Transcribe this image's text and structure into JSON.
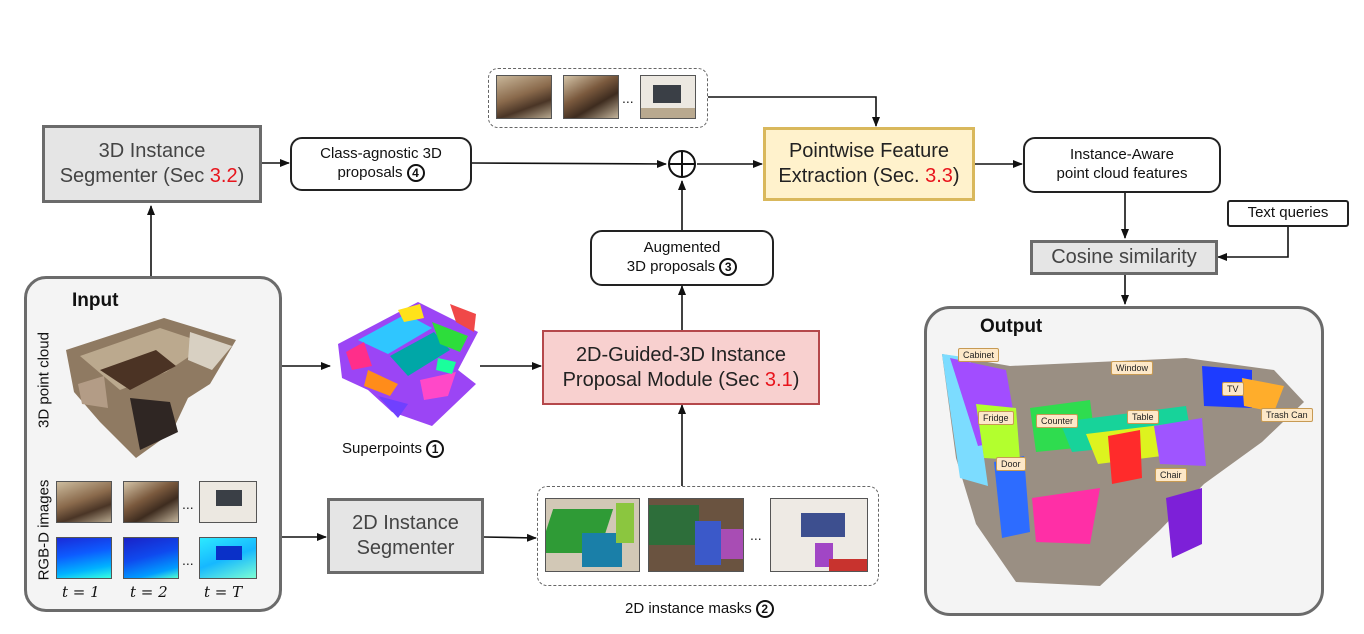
{
  "boxes": {
    "seg3d_line1": "3D Instance",
    "seg3d_line2": "Segmenter (Sec ",
    "seg3d_ref": "3.2",
    "seg3d_close": ")",
    "class_agnostic_line1": "Class-agnostic 3D",
    "class_agnostic_line2": "proposals",
    "class_agnostic_num": "4",
    "pointwise_line1": "Pointwise Feature",
    "pointwise_line2": "Extraction (Sec. ",
    "pointwise_ref": "3.3",
    "pointwise_close": ")",
    "instance_aware_line1": "Instance-Aware",
    "instance_aware_line2": "point cloud features",
    "text_queries": "Text queries",
    "cosine": "Cosine similarity",
    "augmented_line1": "Augmented",
    "augmented_line2": "3D proposals",
    "augmented_num": "3",
    "guided_line1": "2D-Guided-3D Instance",
    "guided_line2": "Proposal Module (Sec ",
    "guided_ref": "3.1",
    "guided_close": ")",
    "seg2d_line1": "2D Instance",
    "seg2d_line2": "Segmenter",
    "oplus": "⊕"
  },
  "input": {
    "title": "Input",
    "side_point_cloud": "3D point cloud",
    "side_rgbd": "RGB-D images",
    "t_labels": [
      "t = 1",
      "t = 2",
      "t = T"
    ],
    "ellipsis": "..."
  },
  "superpoints": {
    "label": "Superpoints",
    "num": "1"
  },
  "masks": {
    "label": "2D instance masks",
    "num": "2",
    "ellipsis": "..."
  },
  "top_frames": {
    "ellipsis": "..."
  },
  "output": {
    "title": "Output",
    "labels": [
      "Cabinet",
      "Window",
      "TV",
      "Fridge",
      "Counter",
      "Table",
      "Trash Can",
      "Door",
      "Chair"
    ]
  },
  "colors": {
    "gray_fill": "#e5e5e5",
    "pink_fill": "#f8d0cf",
    "pink_border": "#b5484b",
    "yellow_fill": "#fff2cc",
    "yellow_border": "#d9b85c",
    "ref_red": "#e8141c"
  }
}
